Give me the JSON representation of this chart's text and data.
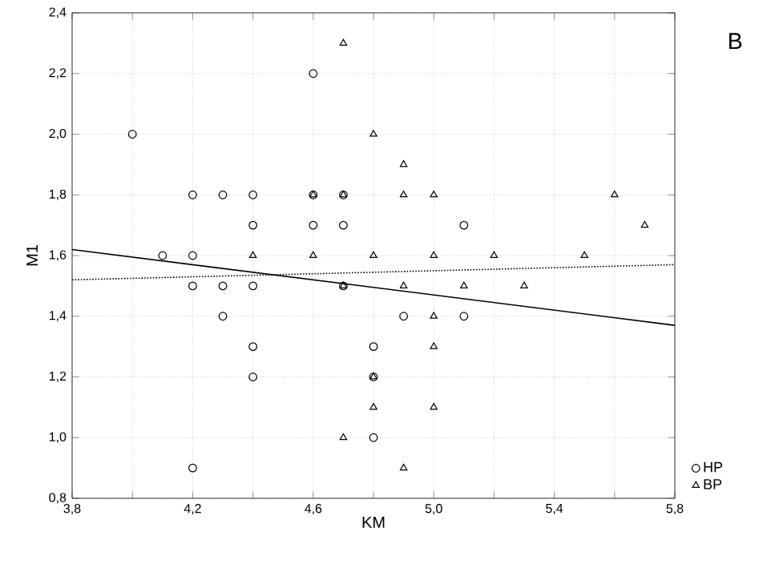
{
  "chart_data": {
    "type": "scatter",
    "xlabel": "KM",
    "ylabel": "M1",
    "annotations": [
      "B"
    ],
    "xlim": [
      3.8,
      5.8
    ],
    "ylim": [
      0.8,
      2.4
    ],
    "xticks": [
      {
        "value": 3.8,
        "label": "3,8"
      },
      {
        "value": 4.0,
        "label": null
      },
      {
        "value": 4.2,
        "label": "4,2"
      },
      {
        "value": 4.4,
        "label": null
      },
      {
        "value": 4.6,
        "label": "4,6"
      },
      {
        "value": 4.8,
        "label": null
      },
      {
        "value": 5.0,
        "label": "5,0"
      },
      {
        "value": 5.2,
        "label": null
      },
      {
        "value": 5.4,
        "label": "5,4"
      },
      {
        "value": 5.6,
        "label": null
      },
      {
        "value": 5.8,
        "label": "5,8"
      }
    ],
    "yticks": [
      {
        "value": 0.8,
        "label": "0,8"
      },
      {
        "value": 1.0,
        "label": "1,0"
      },
      {
        "value": 1.2,
        "label": "1,2"
      },
      {
        "value": 1.4,
        "label": "1,4"
      },
      {
        "value": 1.6,
        "label": "1,6"
      },
      {
        "value": 1.8,
        "label": "1,8"
      },
      {
        "value": 2.0,
        "label": "2,0"
      },
      {
        "value": 2.2,
        "label": "2,2"
      },
      {
        "value": 2.4,
        "label": "2,4"
      }
    ],
    "grid": true,
    "legend": "bottom right",
    "series": [
      {
        "name": "HP",
        "color": "#000000",
        "marker": "circle",
        "x": [
          4.0,
          4.6,
          4.2,
          4.3,
          4.4,
          4.6,
          4.7,
          4.4,
          4.6,
          4.7,
          5.1,
          4.1,
          4.2,
          4.2,
          4.3,
          4.4,
          4.7,
          4.3,
          4.9,
          5.1,
          4.4,
          4.8,
          4.4,
          4.8,
          4.8,
          4.2
        ],
        "values": [
          2.0,
          2.2,
          1.8,
          1.8,
          1.8,
          1.8,
          1.8,
          1.7,
          1.7,
          1.7,
          1.7,
          1.6,
          1.6,
          1.5,
          1.5,
          1.5,
          1.5,
          1.4,
          1.4,
          1.4,
          1.3,
          1.3,
          1.2,
          1.2,
          1.0,
          0.9
        ]
      },
      {
        "name": "BP",
        "color": "#000000",
        "marker": "triangle",
        "x": [
          4.7,
          4.8,
          4.9,
          4.6,
          4.7,
          4.9,
          5.0,
          5.6,
          5.7,
          4.4,
          4.6,
          4.8,
          5.0,
          5.2,
          5.5,
          4.7,
          4.9,
          5.1,
          5.3,
          5.0,
          5.0,
          4.8,
          4.8,
          5.0,
          4.7,
          4.9
        ],
        "values": [
          2.3,
          2.0,
          1.9,
          1.8,
          1.8,
          1.8,
          1.8,
          1.8,
          1.7,
          1.6,
          1.6,
          1.6,
          1.6,
          1.6,
          1.6,
          1.5,
          1.5,
          1.5,
          1.5,
          1.4,
          1.3,
          1.2,
          1.1,
          1.1,
          1.0,
          0.9
        ]
      },
      {
        "type": "line",
        "color": "#000000",
        "line_style": "solid",
        "x": [
          3.8,
          5.8
        ],
        "values": [
          1.62,
          1.37
        ]
      },
      {
        "type": "line",
        "color": "#000000",
        "line_style": "dotted",
        "x": [
          3.8,
          5.8
        ],
        "values": [
          1.52,
          1.57
        ]
      }
    ]
  }
}
